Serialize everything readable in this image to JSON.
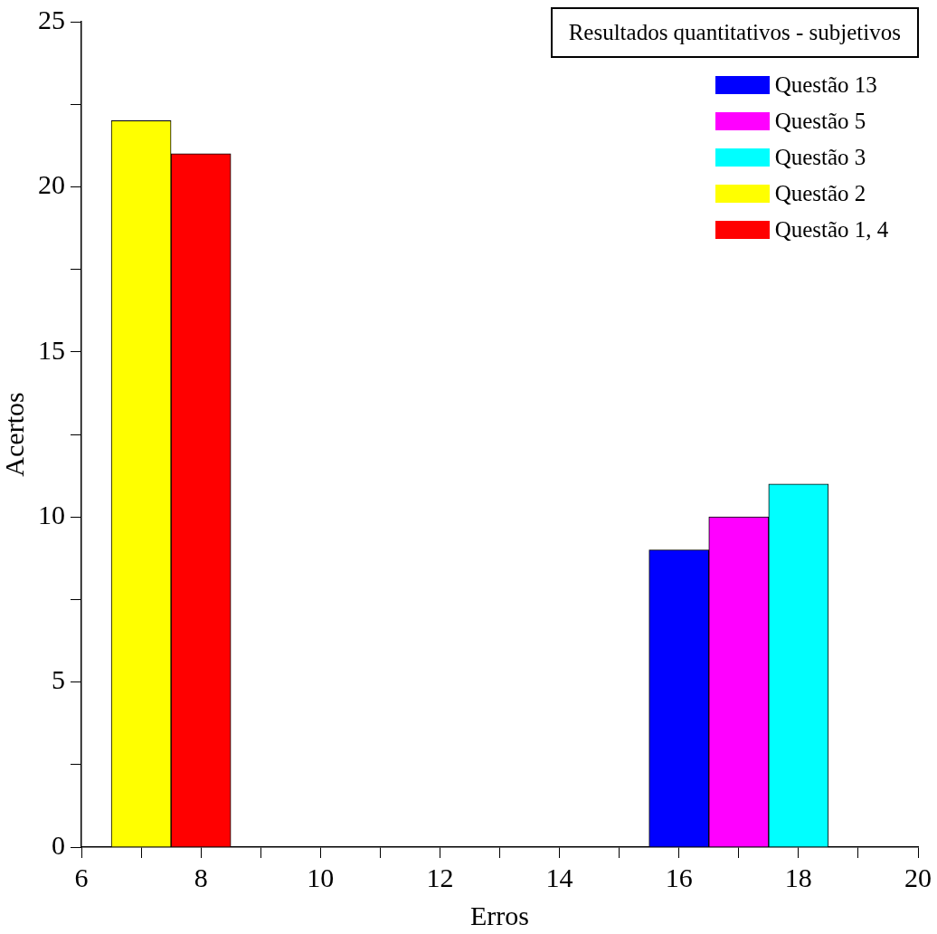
{
  "chart_data": {
    "type": "bar",
    "xlabel": "Erros",
    "ylabel": "Acertos",
    "legend_title": "Resultados quantitativos - subjetivos",
    "legend": "top right",
    "grid": false,
    "xlim": [
      6,
      20
    ],
    "xticks": [
      6,
      {
        "value": 7,
        "label": null
      },
      8,
      {
        "value": 9,
        "label": null
      },
      10,
      {
        "value": 11,
        "label": null
      },
      12,
      {
        "value": 13,
        "label": null
      },
      14,
      {
        "value": 15,
        "label": null
      },
      16,
      {
        "value": 17,
        "label": null
      },
      18,
      {
        "value": 19,
        "label": null
      },
      20
    ],
    "ylim": [
      0,
      25
    ],
    "yticks": [
      0,
      {
        "value": 2.5,
        "label": null
      },
      5,
      {
        "value": 7.5,
        "label": null
      },
      10,
      {
        "value": 12.5,
        "label": null
      },
      15,
      {
        "value": 17.5,
        "label": null
      },
      20,
      {
        "value": 22.5,
        "label": null
      },
      25
    ],
    "series": [
      {
        "name": "Questão 13",
        "color": "#0000ff",
        "x": [
          16
        ],
        "values": [
          9
        ]
      },
      {
        "name": "Questão 5",
        "color": "#ff00ff",
        "x": [
          17
        ],
        "values": [
          10
        ]
      },
      {
        "name": "Questão 3",
        "color": "#00ffff",
        "x": [
          18
        ],
        "values": [
          11
        ]
      },
      {
        "name": "Questão 2",
        "color": "#ffff00",
        "x": [
          7
        ],
        "values": [
          22
        ]
      },
      {
        "name": "Questão 1, 4",
        "color": "#ff0000",
        "x": [
          8
        ],
        "values": [
          21
        ]
      }
    ]
  }
}
